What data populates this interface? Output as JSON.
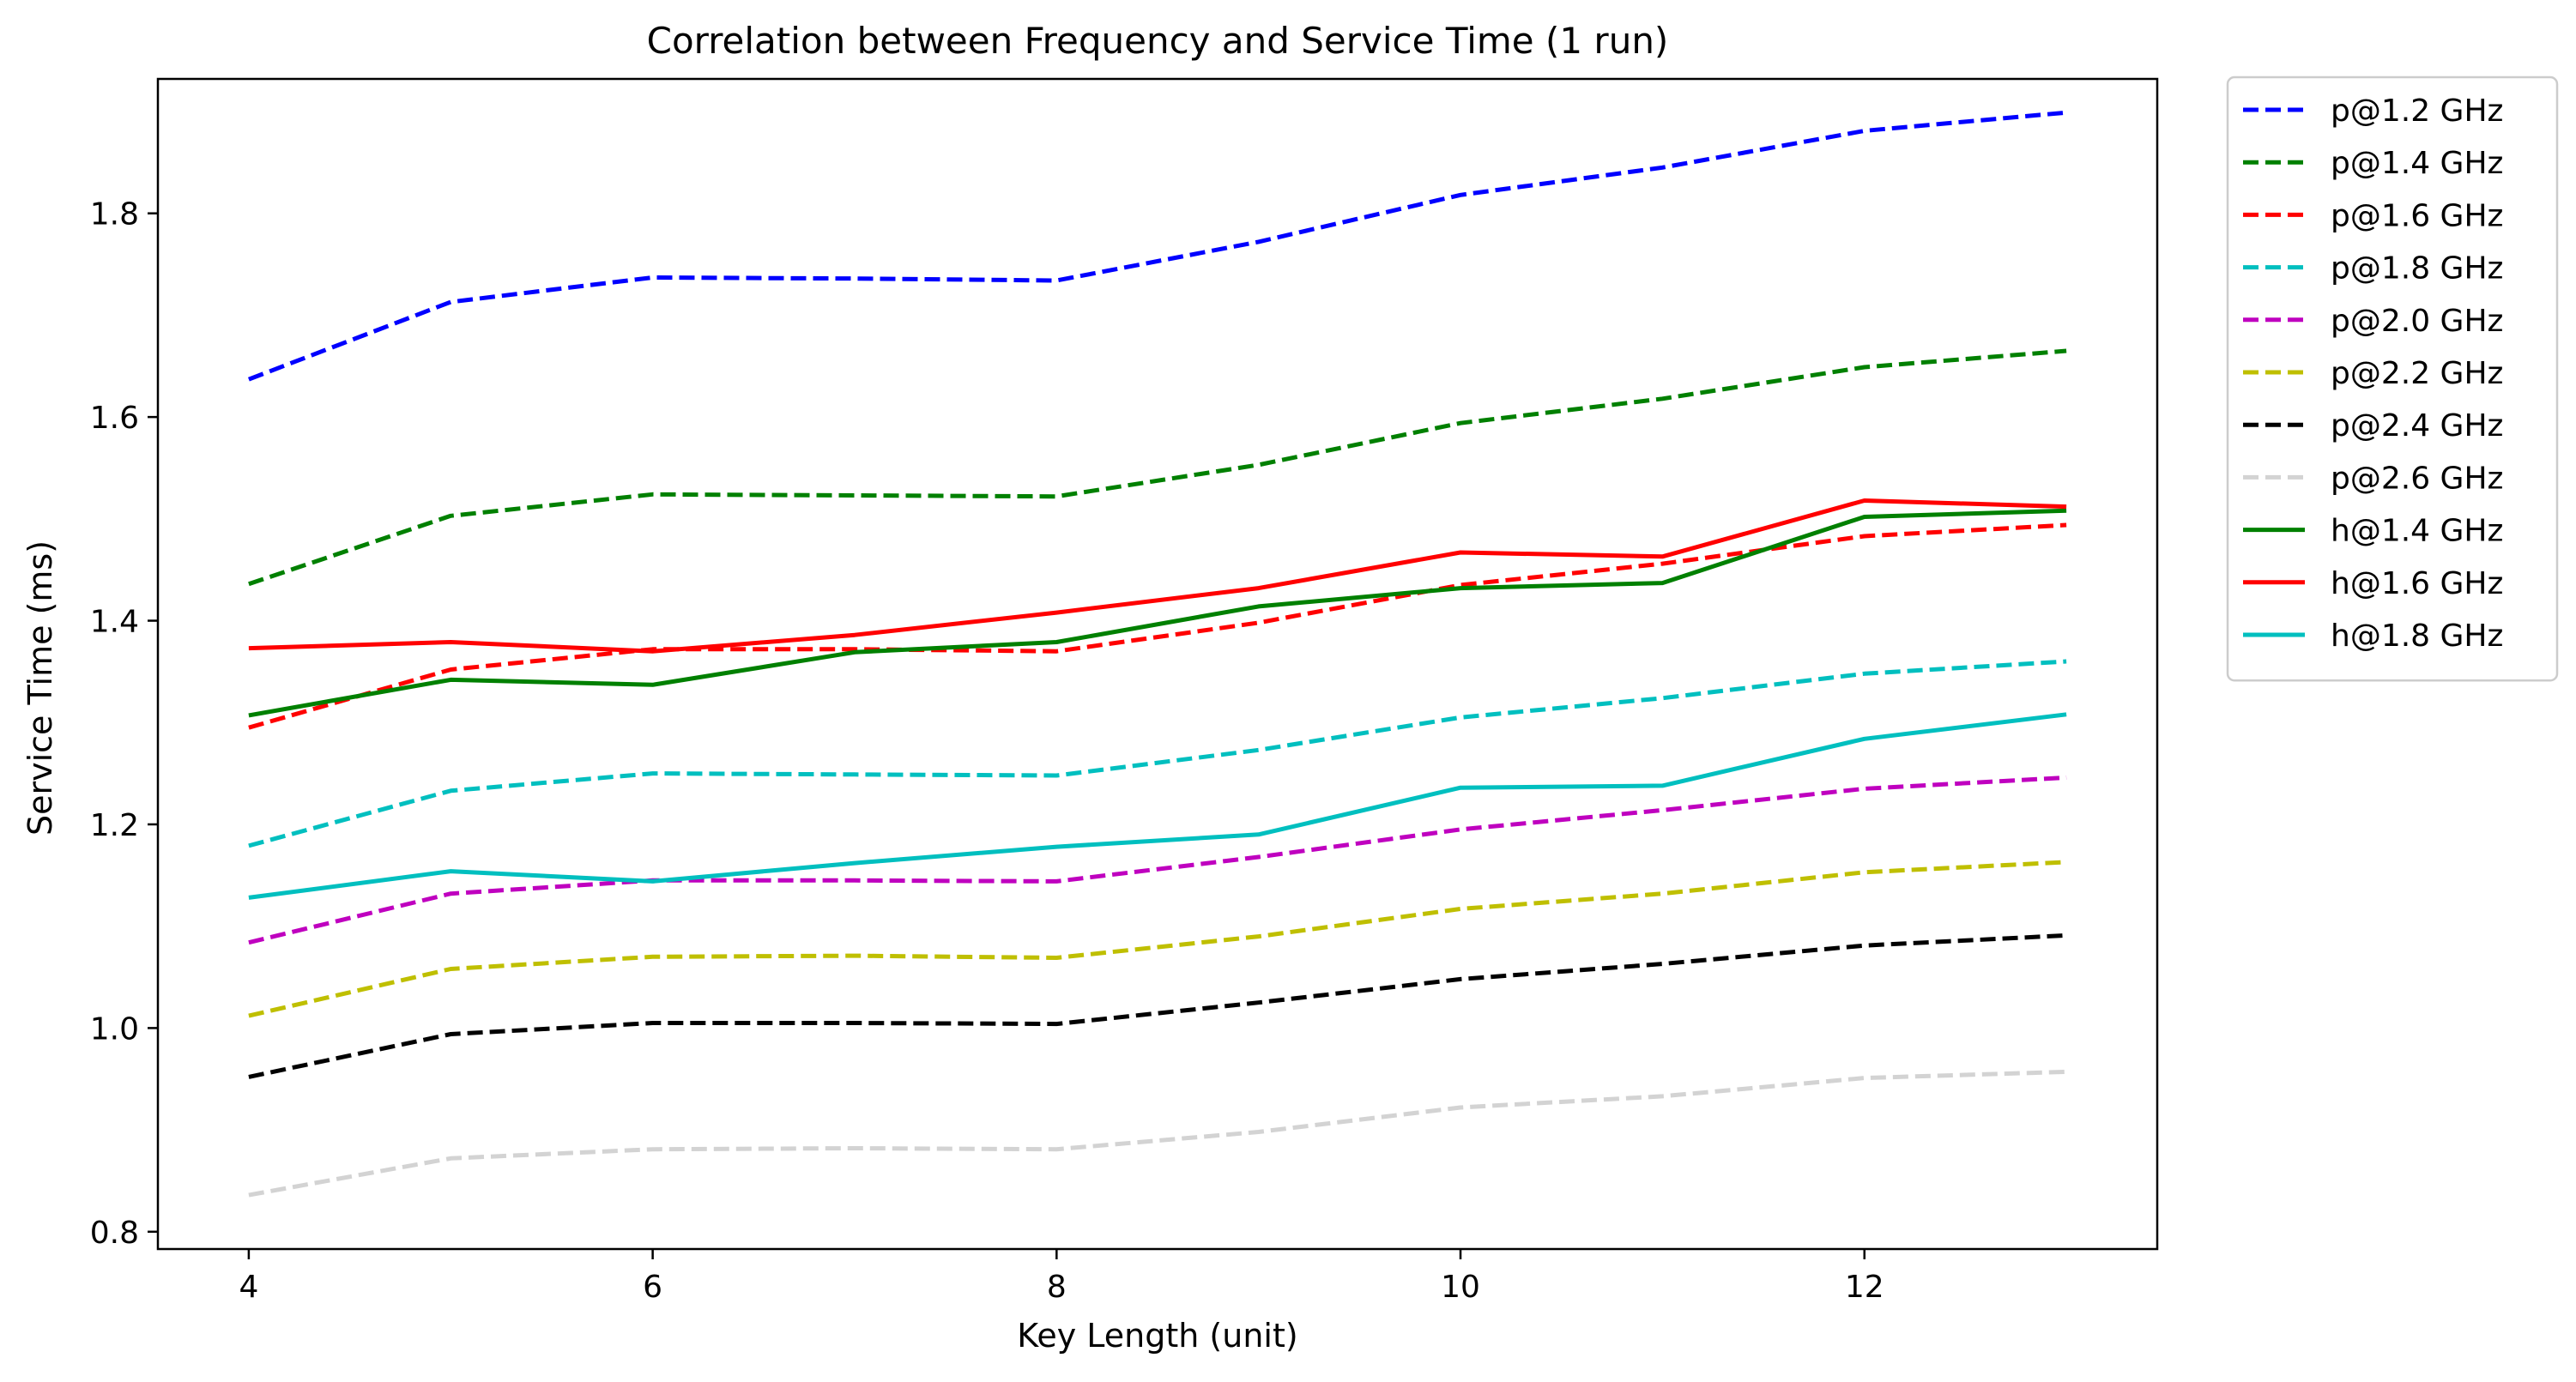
{
  "chart_data": {
    "type": "line",
    "title": "Correlation between Frequency and Service Time (1 run)",
    "xlabel": "Key Length (unit)",
    "ylabel": "Service Time (ms)",
    "xlim": [
      3.55,
      13.45
    ],
    "ylim": [
      0.783,
      1.932
    ],
    "xticks": [
      4,
      6,
      8,
      10,
      12
    ],
    "yticks": [
      0.8,
      1.0,
      1.2,
      1.4,
      1.6,
      1.8
    ],
    "ytick_labels": [
      "0.8",
      "1.0",
      "1.2",
      "1.4",
      "1.6",
      "1.8"
    ],
    "grid": false,
    "legend_position": "outside top-right",
    "x": [
      4,
      5,
      6,
      7,
      8,
      9,
      10,
      11,
      12,
      13
    ],
    "series": [
      {
        "name": "p@1.2 GHz",
        "color": "#0000ff",
        "style": "dashed",
        "values": [
          1.637,
          1.713,
          1.737,
          1.736,
          1.734,
          1.772,
          1.818,
          1.845,
          1.881,
          1.899
        ]
      },
      {
        "name": "p@1.4 GHz",
        "color": "#008000",
        "style": "dashed",
        "values": [
          1.436,
          1.503,
          1.524,
          1.523,
          1.522,
          1.553,
          1.594,
          1.618,
          1.649,
          1.665
        ]
      },
      {
        "name": "p@1.6 GHz",
        "color": "#ff0000",
        "style": "dashed",
        "values": [
          1.295,
          1.352,
          1.372,
          1.372,
          1.37,
          1.398,
          1.435,
          1.456,
          1.483,
          1.494
        ]
      },
      {
        "name": "p@1.8 GHz",
        "color": "#00bfbf",
        "style": "dashed",
        "values": [
          1.179,
          1.233,
          1.25,
          1.249,
          1.248,
          1.273,
          1.305,
          1.324,
          1.348,
          1.36
        ]
      },
      {
        "name": "p@2.0 GHz",
        "color": "#bf00bf",
        "style": "dashed",
        "values": [
          1.084,
          1.132,
          1.145,
          1.145,
          1.144,
          1.168,
          1.195,
          1.214,
          1.235,
          1.246
        ]
      },
      {
        "name": "p@2.2 GHz",
        "color": "#bfbf00",
        "style": "dashed",
        "values": [
          1.012,
          1.058,
          1.07,
          1.071,
          1.069,
          1.09,
          1.117,
          1.132,
          1.153,
          1.163
        ]
      },
      {
        "name": "p@2.4 GHz",
        "color": "#000000",
        "style": "dashed",
        "values": [
          0.952,
          0.994,
          1.005,
          1.005,
          1.004,
          1.025,
          1.048,
          1.063,
          1.081,
          1.091
        ]
      },
      {
        "name": "p@2.6 GHz",
        "color": "#d3d3d3",
        "style": "dashed",
        "values": [
          0.836,
          0.872,
          0.881,
          0.882,
          0.881,
          0.898,
          0.922,
          0.933,
          0.951,
          0.957
        ]
      },
      {
        "name": "h@1.4 GHz",
        "color": "#008000",
        "style": "solid",
        "values": [
          1.307,
          1.342,
          1.337,
          1.369,
          1.379,
          1.414,
          1.432,
          1.437,
          1.502,
          1.508
        ]
      },
      {
        "name": "h@1.6 GHz",
        "color": "#ff0000",
        "style": "solid",
        "values": [
          1.373,
          1.379,
          1.37,
          1.386,
          1.408,
          1.432,
          1.467,
          1.463,
          1.518,
          1.512
        ]
      },
      {
        "name": "h@1.8 GHz",
        "color": "#00bfbf",
        "style": "solid",
        "values": [
          1.128,
          1.154,
          1.144,
          1.162,
          1.178,
          1.19,
          1.236,
          1.238,
          1.284,
          1.308
        ]
      }
    ]
  }
}
